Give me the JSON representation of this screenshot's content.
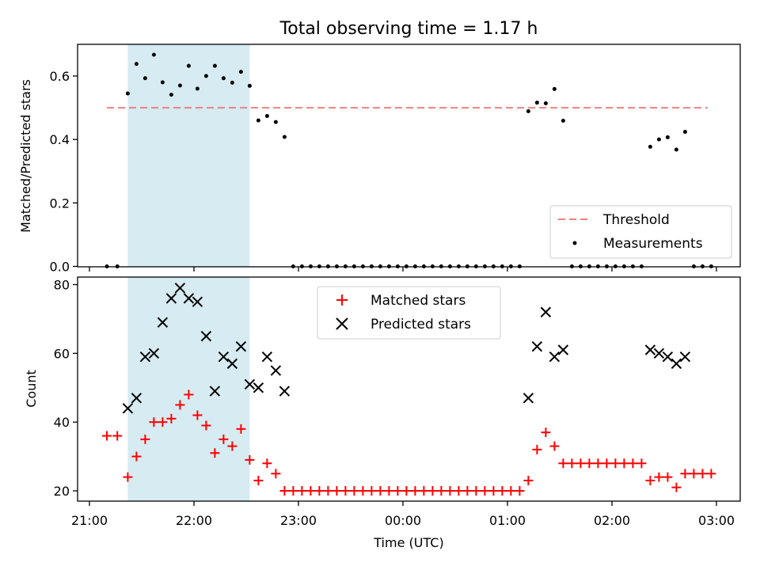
{
  "chart_data": [
    {
      "type": "scatter",
      "title": "Total observing time = 1.17 h",
      "ylabel": "Matched/Predicted stars",
      "xlim": [
        "21:00",
        "03:00"
      ],
      "ylim": [
        0,
        0.7
      ],
      "yticks": [
        "0.0",
        "0.2",
        "0.4",
        "0.6"
      ],
      "shaded_interval": [
        "21:22",
        "22:32"
      ],
      "shaded_color": "#add8e6",
      "threshold": {
        "name": "Threshold",
        "value": 0.5,
        "x_range": [
          "21:10",
          "02:55"
        ],
        "color": "#f08080"
      },
      "series": [
        {
          "name": "Measurements",
          "color": "#000000",
          "x": [
            "21:10",
            "21:16",
            "21:22",
            "21:27",
            "21:32",
            "21:37",
            "21:42",
            "21:47",
            "21:52",
            "21:57",
            "22:02",
            "22:07",
            "22:12",
            "22:17",
            "22:22",
            "22:27",
            "22:32",
            "22:37",
            "22:42",
            "22:47",
            "22:52",
            "22:57",
            "23:02",
            "23:07",
            "23:12",
            "23:17",
            "23:22",
            "23:27",
            "23:32",
            "23:37",
            "23:42",
            "23:47",
            "23:52",
            "23:57",
            "00:02",
            "00:07",
            "00:12",
            "00:17",
            "00:22",
            "00:27",
            "00:32",
            "00:37",
            "00:42",
            "00:47",
            "00:52",
            "00:57",
            "01:02",
            "01:07",
            "01:12",
            "01:17",
            "01:22",
            "01:27",
            "01:32",
            "01:37",
            "01:42",
            "01:47",
            "01:52",
            "01:57",
            "02:02",
            "02:07",
            "02:12",
            "02:17",
            "02:22",
            "02:27",
            "02:32",
            "02:37",
            "02:42",
            "02:47",
            "02:52",
            "02:57"
          ],
          "y": [
            0.0,
            0.0,
            0.545,
            0.638,
            0.593,
            0.667,
            0.58,
            0.541,
            0.57,
            0.632,
            0.56,
            0.6,
            0.632,
            0.593,
            0.579,
            0.613,
            0.569,
            0.46,
            0.474,
            0.455,
            0.408,
            0.0,
            0.0,
            0.0,
            0.0,
            0.0,
            0.0,
            0.0,
            0.0,
            0.0,
            0.0,
            0.0,
            0.0,
            0.0,
            0.0,
            0.0,
            0.0,
            0.0,
            0.0,
            0.0,
            0.0,
            0.0,
            0.0,
            0.0,
            0.0,
            0.0,
            0.0,
            0.0,
            0.489,
            0.516,
            0.514,
            0.559,
            0.459,
            0.0,
            0.0,
            0.0,
            0.0,
            0.0,
            0.0,
            0.0,
            0.0,
            0.0,
            0.377,
            0.4,
            0.407,
            0.368,
            0.424,
            0.0,
            0.0,
            0.0
          ]
        }
      ],
      "legend": "bottom-right"
    },
    {
      "type": "scatter",
      "ylabel": "Count",
      "xlabel": "Time (UTC)",
      "xlim": [
        "21:00",
        "03:00"
      ],
      "ylim": [
        17,
        82
      ],
      "xticks": [
        "21:00",
        "22:00",
        "23:00",
        "00:00",
        "01:00",
        "02:00",
        "03:00"
      ],
      "yticks": [
        "20",
        "40",
        "60",
        "80"
      ],
      "shaded_interval": [
        "21:22",
        "22:32"
      ],
      "series": [
        {
          "name": "Matched stars",
          "marker": "plus",
          "color": "#ff0000",
          "x": [
            "21:10",
            "21:16",
            "21:22",
            "21:27",
            "21:32",
            "21:37",
            "21:42",
            "21:47",
            "21:52",
            "21:57",
            "22:02",
            "22:07",
            "22:12",
            "22:17",
            "22:22",
            "22:27",
            "22:32",
            "22:37",
            "22:42",
            "22:47",
            "22:52",
            "22:57",
            "23:02",
            "23:07",
            "23:12",
            "23:17",
            "23:22",
            "23:27",
            "23:32",
            "23:37",
            "23:42",
            "23:47",
            "23:52",
            "23:57",
            "00:02",
            "00:07",
            "00:12",
            "00:17",
            "00:22",
            "00:27",
            "00:32",
            "00:37",
            "00:42",
            "00:47",
            "00:52",
            "00:57",
            "01:02",
            "01:07",
            "01:12",
            "01:17",
            "01:22",
            "01:27",
            "01:32",
            "01:37",
            "01:42",
            "01:47",
            "01:52",
            "01:57",
            "02:02",
            "02:07",
            "02:12",
            "02:17",
            "02:22",
            "02:27",
            "02:32",
            "02:37",
            "02:42",
            "02:47",
            "02:52",
            "02:57"
          ],
          "y": [
            36,
            36,
            24,
            30,
            35,
            40,
            40,
            41,
            45,
            48,
            42,
            39,
            31,
            35,
            33,
            38,
            29,
            23,
            28,
            25,
            20,
            20,
            20,
            20,
            20,
            20,
            20,
            20,
            20,
            20,
            20,
            20,
            20,
            20,
            20,
            20,
            20,
            20,
            20,
            20,
            20,
            20,
            20,
            20,
            20,
            20,
            20,
            20,
            23,
            32,
            37,
            33,
            28,
            28,
            28,
            28,
            28,
            28,
            28,
            28,
            28,
            28,
            23,
            24,
            24,
            21,
            25,
            25,
            25,
            25
          ]
        },
        {
          "name": "Predicted stars",
          "marker": "x",
          "color": "#000000",
          "x": [
            "21:22",
            "21:27",
            "21:32",
            "21:37",
            "21:42",
            "21:47",
            "21:52",
            "21:57",
            "22:02",
            "22:07",
            "22:12",
            "22:17",
            "22:22",
            "22:27",
            "22:32",
            "22:37",
            "22:42",
            "22:47",
            "22:52",
            "01:12",
            "01:17",
            "01:22",
            "01:27",
            "01:32",
            "02:22",
            "02:27",
            "02:32",
            "02:37",
            "02:42"
          ],
          "y": [
            44,
            47,
            59,
            60,
            69,
            76,
            79,
            76,
            75,
            65,
            49,
            59,
            57,
            62,
            51,
            50,
            59,
            55,
            49,
            47,
            62,
            72,
            59,
            61,
            61,
            60,
            59,
            57,
            59
          ]
        }
      ],
      "legend": "upper-center"
    }
  ]
}
